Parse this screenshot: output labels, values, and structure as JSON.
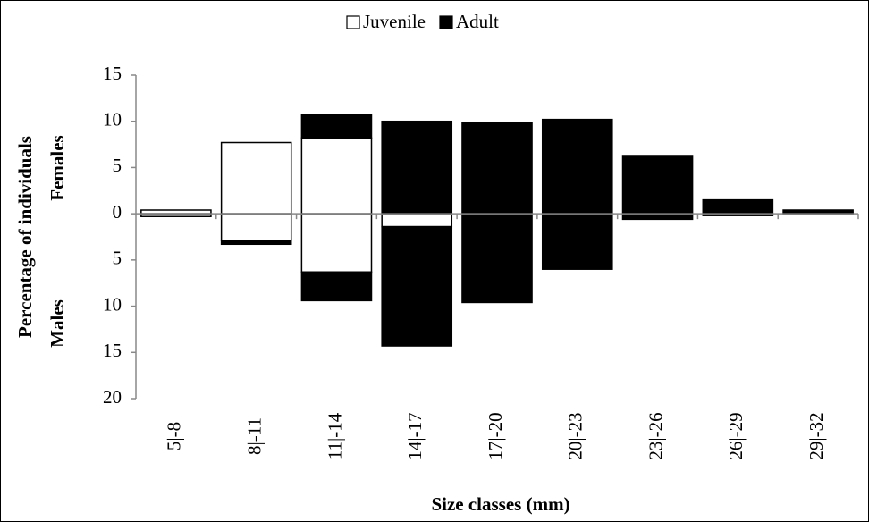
{
  "chart_data": {
    "type": "bar",
    "y_label": "Percentage of individuals",
    "females_label": "Females",
    "males_label": "Males",
    "x_label": "Size classes (mm)",
    "categories": [
      "5|-8",
      "8|-11",
      "11|-14",
      "14|-17",
      "17|-20",
      "20|-23",
      "23|-26",
      "26|-29",
      "29|-32"
    ],
    "series": [
      {
        "name": "Juvenile",
        "color": "#ffffff",
        "females": [
          0.4,
          7.7,
          8.2,
          0,
          0,
          0,
          0,
          0,
          0
        ],
        "males": [
          -0.3,
          -2.9,
          -6.3,
          -1.4,
          0,
          0,
          0,
          0,
          0
        ]
      },
      {
        "name": "Adult",
        "color": "#000000",
        "females": [
          0,
          0,
          2.5,
          10.0,
          9.9,
          10.2,
          6.3,
          1.5,
          0.4
        ],
        "males": [
          0,
          -0.4,
          -3.1,
          -12.9,
          -9.6,
          -6.0,
          -0.6,
          -0.2,
          0
        ]
      }
    ],
    "ylim": [
      -20,
      15
    ],
    "yticks": [
      15,
      10,
      5,
      0,
      {
        "value": -5,
        "label": "5"
      },
      {
        "value": -10,
        "label": "10"
      },
      {
        "value": -15,
        "label": "15"
      },
      {
        "value": -20,
        "label": "20"
      }
    ],
    "legend": "top"
  }
}
